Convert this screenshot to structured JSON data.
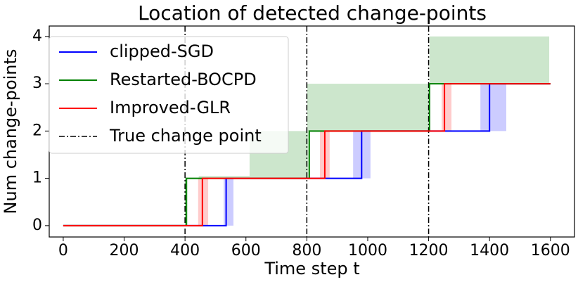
{
  "chart_data": {
    "type": "step",
    "title": "Location of detected change-points",
    "xlabel": "Time step t",
    "ylabel": "Num change-points",
    "xlim": [
      -46,
      1679
    ],
    "ylim": [
      -0.24,
      4.22
    ],
    "xticks": [
      0,
      200,
      400,
      600,
      800,
      1000,
      1200,
      1400,
      1600
    ],
    "yticks": [
      0,
      1,
      2,
      3,
      4
    ],
    "legend": "upper left",
    "series": [
      {
        "name": "clipped-SGD",
        "color": "#0000ff",
        "x": [
          0,
          535,
          535,
          980,
          980,
          1400,
          1400,
          1600
        ],
        "values": [
          0,
          0,
          1,
          1,
          2,
          2,
          3,
          3
        ],
        "bands": [
          {
            "x0": 527,
            "x1": 559,
            "y0": 0,
            "y1": 1
          },
          {
            "x0": 952,
            "x1": 1009,
            "y0": 1,
            "y1": 2
          },
          {
            "x0": 1370,
            "x1": 1455,
            "y0": 2,
            "y1": 3
          }
        ]
      },
      {
        "name": "Restarted-BOCPD",
        "color": "#008000",
        "x": [
          0,
          404,
          404,
          808,
          808,
          1203,
          1203,
          1600
        ],
        "values": [
          0,
          0,
          1,
          1,
          2,
          2,
          3,
          3
        ],
        "bands": [
          {
            "x0": 400,
            "x1": 409,
            "y0": 0,
            "y1": 1
          },
          {
            "x0": 445,
            "x1": 612,
            "y0": 1,
            "y1": 1.05
          },
          {
            "x0": 612,
            "x1": 805,
            "y0": 1,
            "y1": 2
          },
          {
            "x0": 801,
            "x1": 1203,
            "y0": 2,
            "y1": 3
          },
          {
            "x0": 1203,
            "x1": 1596,
            "y0": 3,
            "y1": 4
          }
        ]
      },
      {
        "name": "Improved-GLR",
        "color": "#ff0000",
        "x": [
          0,
          457,
          457,
          859,
          859,
          1252,
          1252,
          1600
        ],
        "values": [
          0,
          0,
          1,
          1,
          2,
          2,
          3,
          3
        ],
        "bands": [
          {
            "x0": 443,
            "x1": 476,
            "y0": 0,
            "y1": 1
          },
          {
            "x0": 843,
            "x1": 875,
            "y0": 1,
            "y1": 2
          },
          {
            "x0": 1243,
            "x1": 1275,
            "y0": 2,
            "y1": 3
          }
        ]
      }
    ],
    "change_points": {
      "name": "True change point",
      "color": "#000000",
      "x": [
        400,
        800,
        1200
      ]
    }
  }
}
